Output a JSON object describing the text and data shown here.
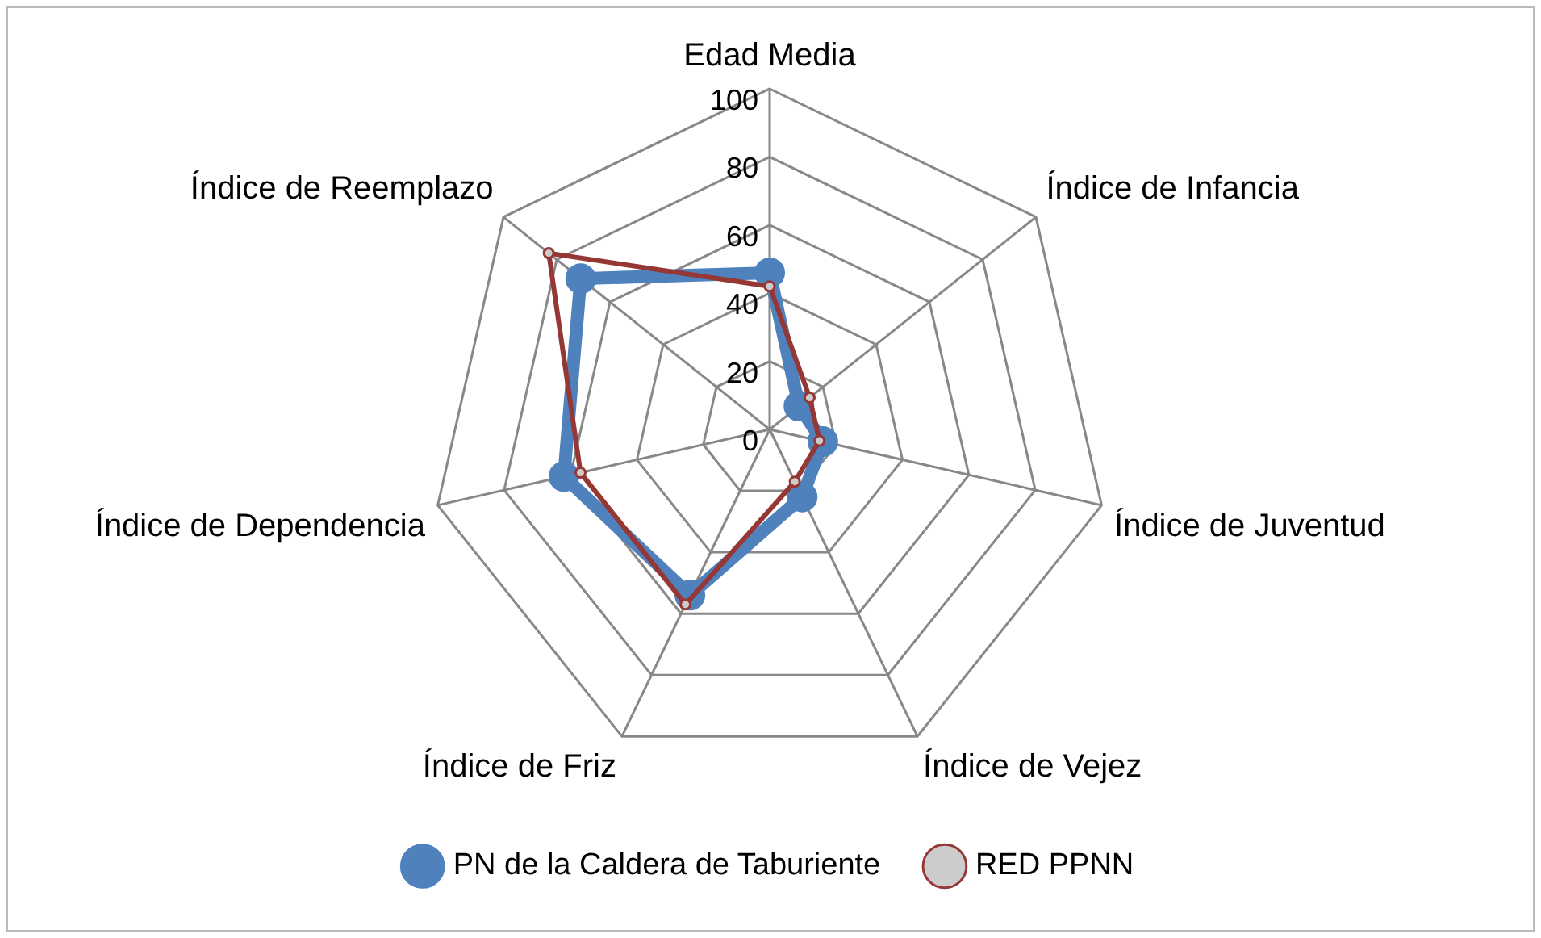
{
  "chart_data": {
    "type": "radar",
    "categories": [
      "Edad Media",
      "Índice de Infancia",
      "Índice de Juventud",
      "Índice de Vejez",
      "Índice de Friz",
      "Índice de Dependencia",
      "Índice de Reemplazo"
    ],
    "series": [
      {
        "name": "PN de la Caldera de Taburiente",
        "color": "#4f81bd",
        "values": [
          46,
          11,
          16,
          22,
          54,
          62,
          71
        ]
      },
      {
        "name": "RED PPNN",
        "color": "#953735",
        "values": [
          42,
          15,
          15,
          17,
          57,
          57,
          83
        ]
      }
    ],
    "ylim": [
      0,
      100
    ],
    "yticks": [
      0,
      20,
      40,
      60,
      80,
      100
    ],
    "grid": true,
    "legend": "bottom",
    "marker": "circle",
    "line_style": "solid"
  }
}
